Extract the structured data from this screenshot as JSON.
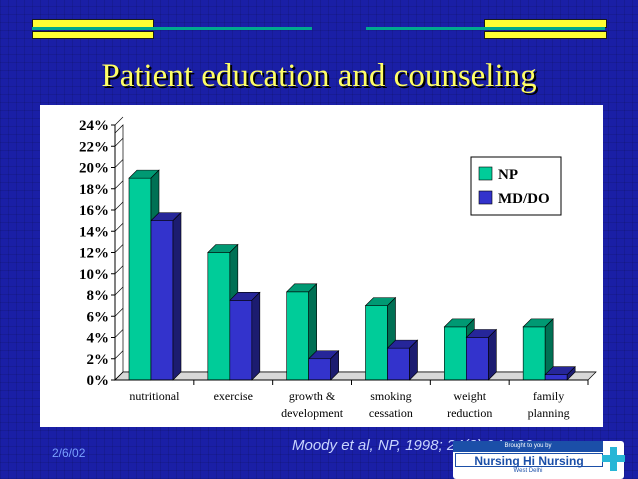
{
  "title": "Patient education and counseling",
  "footer": {
    "date": "2/6/02",
    "citation": "Moody et al, NP, 1998; 24(3):94-100"
  },
  "badge": {
    "top": "Brought to you by",
    "main": "Nursing Hi Nursing",
    "sub": "West Delhi"
  },
  "colors": {
    "background": "#1a1fa6",
    "title": "#ffff66",
    "np": "#00cc99",
    "md_do": "#3333cc"
  },
  "chart_data": {
    "type": "bar",
    "categories": [
      [
        "nutritional"
      ],
      [
        "exercise"
      ],
      [
        "growth &",
        "development"
      ],
      [
        "smoking",
        "cessation"
      ],
      [
        "weight",
        "reduction"
      ],
      [
        "family",
        "planning"
      ]
    ],
    "series": [
      {
        "name": "NP",
        "values": [
          19,
          12,
          8.3,
          7,
          5,
          5
        ]
      },
      {
        "name": "MD/DO",
        "values": [
          15,
          7.5,
          2,
          3,
          4,
          0.5
        ]
      }
    ],
    "y_ticks": [
      "0%",
      "2%",
      "4%",
      "6%",
      "8%",
      "10%",
      "12%",
      "14%",
      "16%",
      "18%",
      "20%",
      "22%",
      "24%"
    ],
    "ylim": [
      0,
      24
    ],
    "y_unit": "%",
    "style": "3d",
    "grid": false,
    "legend_position": "top-right"
  }
}
